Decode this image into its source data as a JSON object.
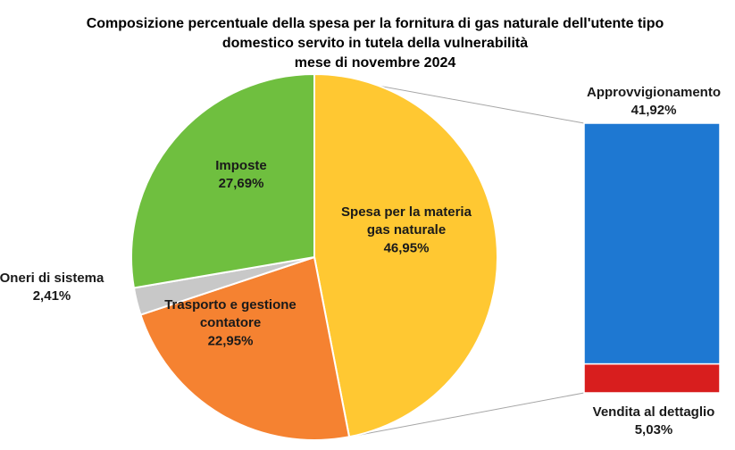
{
  "chart_data": {
    "type": "pie",
    "title_lines": [
      "Composizione percentuale della spesa per la fornitura di gas naturale dell'utente tipo",
      "domestico servito in tutela della vulnerabilità",
      "mese di novembre 2024"
    ],
    "pie": {
      "slices": [
        {
          "label_lines": [
            "Spesa per la materia",
            "gas naturale"
          ],
          "value_text": "46,95%",
          "value": 46.95,
          "color": "#ffc832"
        },
        {
          "label_lines": [
            "Trasporto e gestione",
            "contatore"
          ],
          "value_text": "22,95%",
          "value": 22.95,
          "color": "#f58231"
        },
        {
          "label_lines": [
            "Oneri di sistema"
          ],
          "value_text": "2,41%",
          "value": 2.41,
          "color": "#c8c8c8"
        },
        {
          "label_lines": [
            "Imposte"
          ],
          "value_text": "27,69%",
          "value": 27.69,
          "color": "#6fbf3f"
        }
      ]
    },
    "breakdown_bar": {
      "of_slice": "Spesa per la materia gas naturale",
      "segments": [
        {
          "label": "Approvvigionamento",
          "value_text": "41,92%",
          "value": 41.92,
          "color": "#1e78d2"
        },
        {
          "label": "Vendita al dettaglio",
          "value_text": "5,03%",
          "value": 5.03,
          "color": "#d81e1e"
        }
      ]
    }
  }
}
